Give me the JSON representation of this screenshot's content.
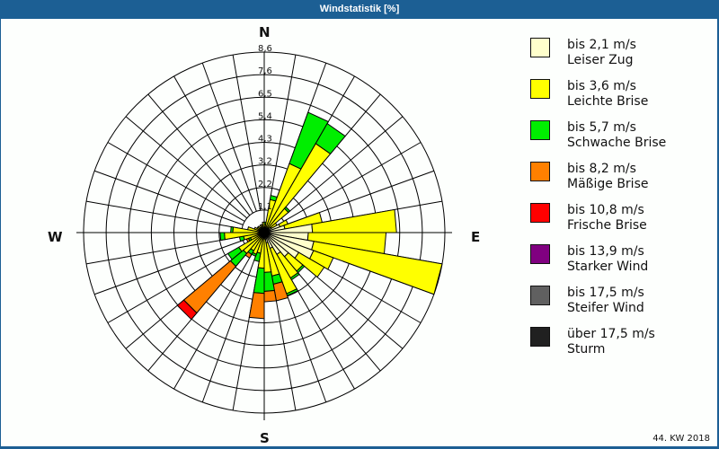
{
  "window": {
    "title": "Windstatistik [%]"
  },
  "compass": {
    "north": "N",
    "east": "E",
    "south": "S",
    "west": "W"
  },
  "footer": {
    "period": "44. KW 2018"
  },
  "legend": {
    "items": [
      {
        "speed": "bis 2,1 m/s",
        "name": "Leiser Zug",
        "color": "#ffffcc"
      },
      {
        "speed": "bis 3,6 m/s",
        "name": "Leichte Brise",
        "color": "#ffff00"
      },
      {
        "speed": "bis 5,7 m/s",
        "name": "Schwache Brise",
        "color": "#00ee00"
      },
      {
        "speed": "bis 8,2 m/s",
        "name": "Mäßige Brise",
        "color": "#ff8000"
      },
      {
        "speed": "bis 10,8 m/s",
        "name": "Frische Brise",
        "color": "#ff0000"
      },
      {
        "speed": "bis 13,9 m/s",
        "name": "Starker Wind",
        "color": "#800080"
      },
      {
        "speed": "bis 17,5 m/s",
        "name": "Steifer Wind",
        "color": "#606060"
      },
      {
        "speed": "über 17,5 m/s",
        "name": "Sturm",
        "color": "#202020"
      }
    ]
  },
  "chart_data": {
    "type": "wind-rose",
    "title": "Windstatistik [%]",
    "subtitle": "44. KW 2018",
    "radial_unit": "%",
    "radial_ticks": [
      "1,1",
      "2,2",
      "3,2",
      "4,3",
      "5,4",
      "6,5",
      "7,6",
      "8,6"
    ],
    "radial_tick_values": [
      1.1,
      2.2,
      3.2,
      4.3,
      5.4,
      6.5,
      7.6,
      8.6
    ],
    "rmax": 8.6,
    "sector_width_deg": 10,
    "classes": [
      "bis 2,1 m/s",
      "bis 3,6 m/s",
      "bis 5,7 m/s",
      "bis 8,2 m/s",
      "bis 10,8 m/s",
      "bis 13,9 m/s",
      "bis 17,5 m/s",
      "über 17,5 m/s"
    ],
    "sectors": [
      {
        "dir": 0,
        "values": [
          0.1,
          0.3,
          0.1,
          0,
          0,
          0,
          0,
          0
        ]
      },
      {
        "dir": 10,
        "values": [
          0.2,
          1.4,
          0.2,
          0,
          0,
          0,
          0,
          0
        ]
      },
      {
        "dir": 20,
        "values": [
          0.2,
          3.3,
          2.6,
          0,
          0,
          0,
          0,
          0
        ]
      },
      {
        "dir": 30,
        "values": [
          0.2,
          4.7,
          1.1,
          0,
          0,
          0,
          0,
          0
        ]
      },
      {
        "dir": 40,
        "values": [
          0.3,
          1.2,
          0.1,
          0,
          0,
          0,
          0,
          0
        ]
      },
      {
        "dir": 50,
        "values": [
          0.4,
          0.3,
          0,
          0,
          0,
          0,
          0,
          0
        ]
      },
      {
        "dir": 60,
        "values": [
          0.8,
          0.4,
          0,
          0,
          0,
          0,
          0,
          0
        ]
      },
      {
        "dir": 70,
        "values": [
          1.0,
          1.8,
          0,
          0,
          0,
          0,
          0,
          0
        ]
      },
      {
        "dir": 80,
        "values": [
          2.3,
          4.0,
          0,
          0,
          0,
          0,
          0,
          0
        ]
      },
      {
        "dir": 90,
        "values": [
          2.1,
          3.7,
          0,
          0,
          0,
          0,
          0,
          0
        ]
      },
      {
        "dir": 100,
        "values": [
          2.4,
          6.2,
          0,
          0,
          0,
          0,
          0,
          0
        ]
      },
      {
        "dir": 110,
        "values": [
          2.5,
          1.0,
          0,
          0,
          0,
          0,
          0,
          0
        ]
      },
      {
        "dir": 120,
        "values": [
          1.9,
          1.4,
          0,
          0,
          0,
          0,
          0,
          0
        ]
      },
      {
        "dir": 130,
        "values": [
          1.5,
          0.9,
          0.1,
          0,
          0,
          0,
          0,
          0
        ]
      },
      {
        "dir": 140,
        "values": [
          1.2,
          1.3,
          0.1,
          0,
          0,
          0,
          0,
          0
        ]
      },
      {
        "dir": 150,
        "values": [
          0.8,
          2.3,
          0.1,
          0,
          0,
          0,
          0,
          0
        ]
      },
      {
        "dir": 160,
        "values": [
          0.5,
          1.6,
          0.4,
          0.8,
          0,
          0,
          0,
          0
        ]
      },
      {
        "dir": 170,
        "values": [
          0.3,
          1.6,
          0.9,
          0.5,
          0,
          0,
          0,
          0
        ]
      },
      {
        "dir": 180,
        "values": [
          0.3,
          1.4,
          1.2,
          1.2,
          0,
          0,
          0,
          0
        ]
      },
      {
        "dir": 190,
        "values": [
          0.2,
          0.8,
          0.4,
          0,
          0,
          0,
          0,
          0
        ]
      },
      {
        "dir": 200,
        "values": [
          0.2,
          0.9,
          0.1,
          0,
          0,
          0,
          0,
          0
        ]
      },
      {
        "dir": 210,
        "values": [
          0.2,
          0.8,
          0.2,
          0.2,
          0,
          0,
          0,
          0
        ]
      },
      {
        "dir": 220,
        "values": [
          0.2,
          1.1,
          0.8,
          2.9,
          0.4,
          0,
          0,
          0
        ]
      },
      {
        "dir": 230,
        "values": [
          0.2,
          1.2,
          0.6,
          0,
          0,
          0,
          0,
          0
        ]
      },
      {
        "dir": 240,
        "values": [
          0.2,
          0.5,
          0.1,
          0.1,
          0,
          0,
          0,
          0
        ]
      },
      {
        "dir": 250,
        "values": [
          0.2,
          0.8,
          0.2,
          0,
          0,
          0,
          0,
          0
        ]
      },
      {
        "dir": 260,
        "values": [
          0.3,
          1.6,
          0.2,
          0,
          0,
          0,
          0,
          0
        ]
      },
      {
        "dir": 270,
        "values": [
          0.2,
          1.3,
          0.1,
          0,
          0,
          0,
          0,
          0
        ]
      },
      {
        "dir": 280,
        "values": [
          0.2,
          0.6,
          0,
          0,
          0,
          0,
          0,
          0
        ]
      },
      {
        "dir": 290,
        "values": [
          0.2,
          0.3,
          0,
          0,
          0,
          0,
          0,
          0
        ]
      },
      {
        "dir": 300,
        "values": [
          0.1,
          0.3,
          0,
          0,
          0,
          0,
          0,
          0
        ]
      },
      {
        "dir": 310,
        "values": [
          0.1,
          0.3,
          0,
          0,
          0,
          0,
          0,
          0
        ]
      },
      {
        "dir": 320,
        "values": [
          0.1,
          0.2,
          0,
          0,
          0,
          0,
          0,
          0
        ]
      },
      {
        "dir": 330,
        "values": [
          0.1,
          0.3,
          0,
          0,
          0,
          0,
          0,
          0
        ]
      },
      {
        "dir": 340,
        "values": [
          0.1,
          0.3,
          0,
          0,
          0,
          0,
          0,
          0
        ]
      },
      {
        "dir": 350,
        "values": [
          0.1,
          0.4,
          0,
          0,
          0,
          0,
          0,
          0
        ]
      }
    ],
    "legend_position": "right",
    "grid": true
  }
}
